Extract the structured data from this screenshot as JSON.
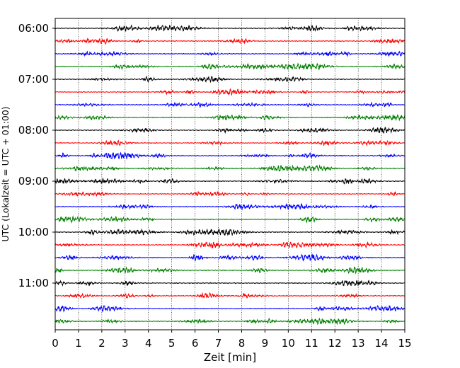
{
  "chart_data": {
    "type": "line",
    "title": "",
    "xlabel": "Zeit  [min]",
    "ylabel": "UTC (Lokalzeit = UTC + 01:00)",
    "xlim": [
      0,
      15
    ],
    "x_ticks": [
      0,
      1,
      2,
      3,
      4,
      5,
      6,
      7,
      8,
      9,
      10,
      11,
      12,
      13,
      14,
      15
    ],
    "y_tick_labels": [
      "06:00",
      "07:00",
      "08:00",
      "09:00",
      "10:00",
      "11:00"
    ],
    "x_grid": true,
    "trace_colors": [
      "#000000",
      "#ff0000",
      "#0000ff",
      "#008000"
    ],
    "traces": [
      "06:00",
      "06:15",
      "06:30",
      "06:45",
      "07:00",
      "07:15",
      "07:30",
      "07:45",
      "08:00",
      "08:15",
      "08:30",
      "08:45",
      "09:00",
      "09:15",
      "09:30",
      "09:45",
      "10:00",
      "10:15",
      "10:30",
      "10:45",
      "11:00",
      "11:15",
      "11:30",
      "11:45"
    ]
  }
}
